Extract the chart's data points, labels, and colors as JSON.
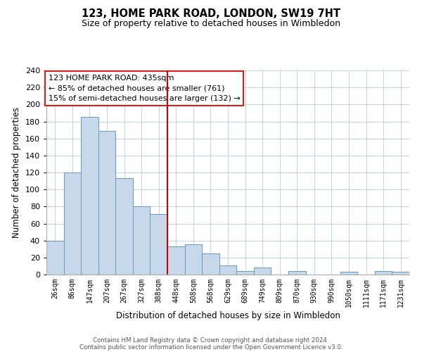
{
  "title": "123, HOME PARK ROAD, LONDON, SW19 7HT",
  "subtitle": "Size of property relative to detached houses in Wimbledon",
  "xlabel": "Distribution of detached houses by size in Wimbledon",
  "ylabel": "Number of detached properties",
  "bar_labels": [
    "26sqm",
    "86sqm",
    "147sqm",
    "207sqm",
    "267sqm",
    "327sqm",
    "388sqm",
    "448sqm",
    "508sqm",
    "568sqm",
    "629sqm",
    "689sqm",
    "749sqm",
    "809sqm",
    "870sqm",
    "930sqm",
    "990sqm",
    "1050sqm",
    "1111sqm",
    "1171sqm",
    "1231sqm"
  ],
  "bar_values": [
    40,
    120,
    185,
    169,
    113,
    80,
    71,
    33,
    36,
    25,
    11,
    4,
    8,
    0,
    4,
    0,
    0,
    3,
    0,
    4,
    3
  ],
  "bar_color": "#c8d8eb",
  "bar_edge_color": "#6699bb",
  "ylim": [
    0,
    240
  ],
  "yticks": [
    0,
    20,
    40,
    60,
    80,
    100,
    120,
    140,
    160,
    180,
    200,
    220,
    240
  ],
  "vline_x": 6.5,
  "vline_color": "#cc0000",
  "annotation_title": "123 HOME PARK ROAD: 435sqm",
  "annotation_line1": "← 85% of detached houses are smaller (761)",
  "annotation_line2": "15% of semi-detached houses are larger (132) →",
  "footer1": "Contains HM Land Registry data © Crown copyright and database right 2024.",
  "footer2": "Contains public sector information licensed under the Open Government Licence v3.0.",
  "bg_color": "#ffffff",
  "grid_color": "#c8d4dc"
}
